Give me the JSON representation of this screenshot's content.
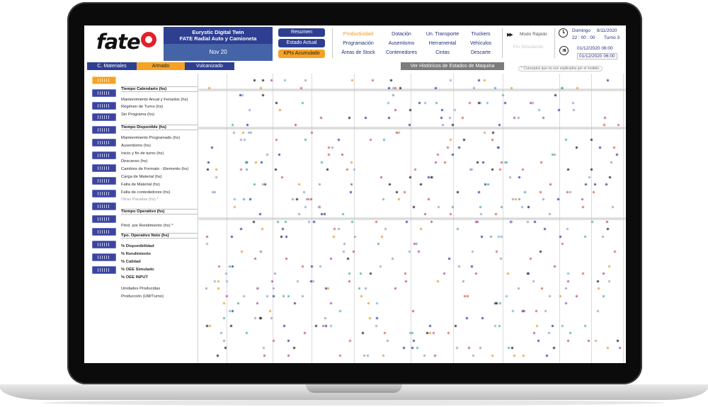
{
  "header": {
    "brand": "fate",
    "project_title": "Eurystic Digital Twin",
    "project_subtitle": "FATE Radial Auto y Camioneta",
    "period": "Nov 20",
    "quick_buttons": [
      {
        "label": "Resumen",
        "state": "normal"
      },
      {
        "label": "Estado Actual",
        "state": "normal"
      },
      {
        "label": "KPIs Acumulado",
        "state": "active"
      }
    ],
    "nav_columns": [
      [
        "Productividad",
        "Programación",
        "Áreas de Stock"
      ],
      [
        "Dotación",
        "Ausentismo",
        "Contenedores"
      ],
      [
        "Un. Transporte",
        "Herramental",
        "Cintas"
      ],
      [
        "Truckers",
        "Vehículos",
        "Descarte"
      ]
    ],
    "active_nav": "Productividad",
    "fast_mode_label": "Modo Rápido",
    "simulation_label": "Fin Simulación",
    "day_label": "Domingo",
    "date_label": "8/11/2020",
    "time_label": "22 : 00 : 00",
    "shift_label": "Turno 3",
    "range_start": "01/12/2020 06:00",
    "range_end": "01/12/2020 06:00"
  },
  "tabs": [
    {
      "label": "C. Materiales",
      "style": "blue"
    },
    {
      "label": "Armado",
      "style": "orange"
    },
    {
      "label": "Vulcanizado",
      "style": "blue"
    }
  ],
  "history_button": "Ver Históricos de Estados de Maquina",
  "note": "* Conceptos que no son explicados por el modelo.",
  "metrics": [
    {
      "label": "Tiempo Calendario (hs)",
      "kind": "bold"
    },
    {
      "label": "Mantenimiento Anual y Feriados (hs)",
      "kind": "normal"
    },
    {
      "label": "Régimen de Turno (hs)",
      "kind": "normal"
    },
    {
      "label": "Sin Programa (hs)",
      "kind": "normal"
    },
    {
      "label": "Tiempo Disponible (hs)",
      "kind": "bold"
    },
    {
      "label": "Mantenimiento Programado (hs)",
      "kind": "normal"
    },
    {
      "label": "Ausentismo (hs)",
      "kind": "normal"
    },
    {
      "label": "Inicio y fin de turno (hs)",
      "kind": "normal"
    },
    {
      "label": "Descanso (hs)",
      "kind": "normal"
    },
    {
      "label": "Cambios de Formato - Elemento (hs)",
      "kind": "normal"
    },
    {
      "label": "Carga de Material (hs)",
      "kind": "normal"
    },
    {
      "label": "Falta de Material (hs)",
      "kind": "normal"
    },
    {
      "label": "Falta de contededores (hs)",
      "kind": "normal"
    },
    {
      "label": "Otras Paradas (hs) *",
      "kind": "gray"
    },
    {
      "label": "Tiempo Operativo (hs)",
      "kind": "bold"
    },
    {
      "label": "Pérd. por Rendimiento (hs) *",
      "kind": "normal"
    },
    {
      "label": "Tpo. Operativo Neto (hs)",
      "kind": "bold"
    },
    {
      "label": "% Disponibilidad",
      "kind": "bold-plain"
    },
    {
      "label": "% Rendimiento",
      "kind": "bold-plain"
    },
    {
      "label": "% Calidad",
      "kind": "bold-plain"
    },
    {
      "label": "% OEE Simulado",
      "kind": "bold-plain"
    },
    {
      "label": "% OEE INPUT",
      "kind": "bold-plain"
    },
    {
      "label": "Unidades Producidas",
      "kind": "normal"
    },
    {
      "label": "Producción (UM/Turno)",
      "kind": "normal"
    }
  ],
  "colors": {
    "brand_red": "#e3202a",
    "nav_blue": "#2e3f92",
    "accent_orange": "#f5a226",
    "muted_gray": "#7c7c7c"
  }
}
